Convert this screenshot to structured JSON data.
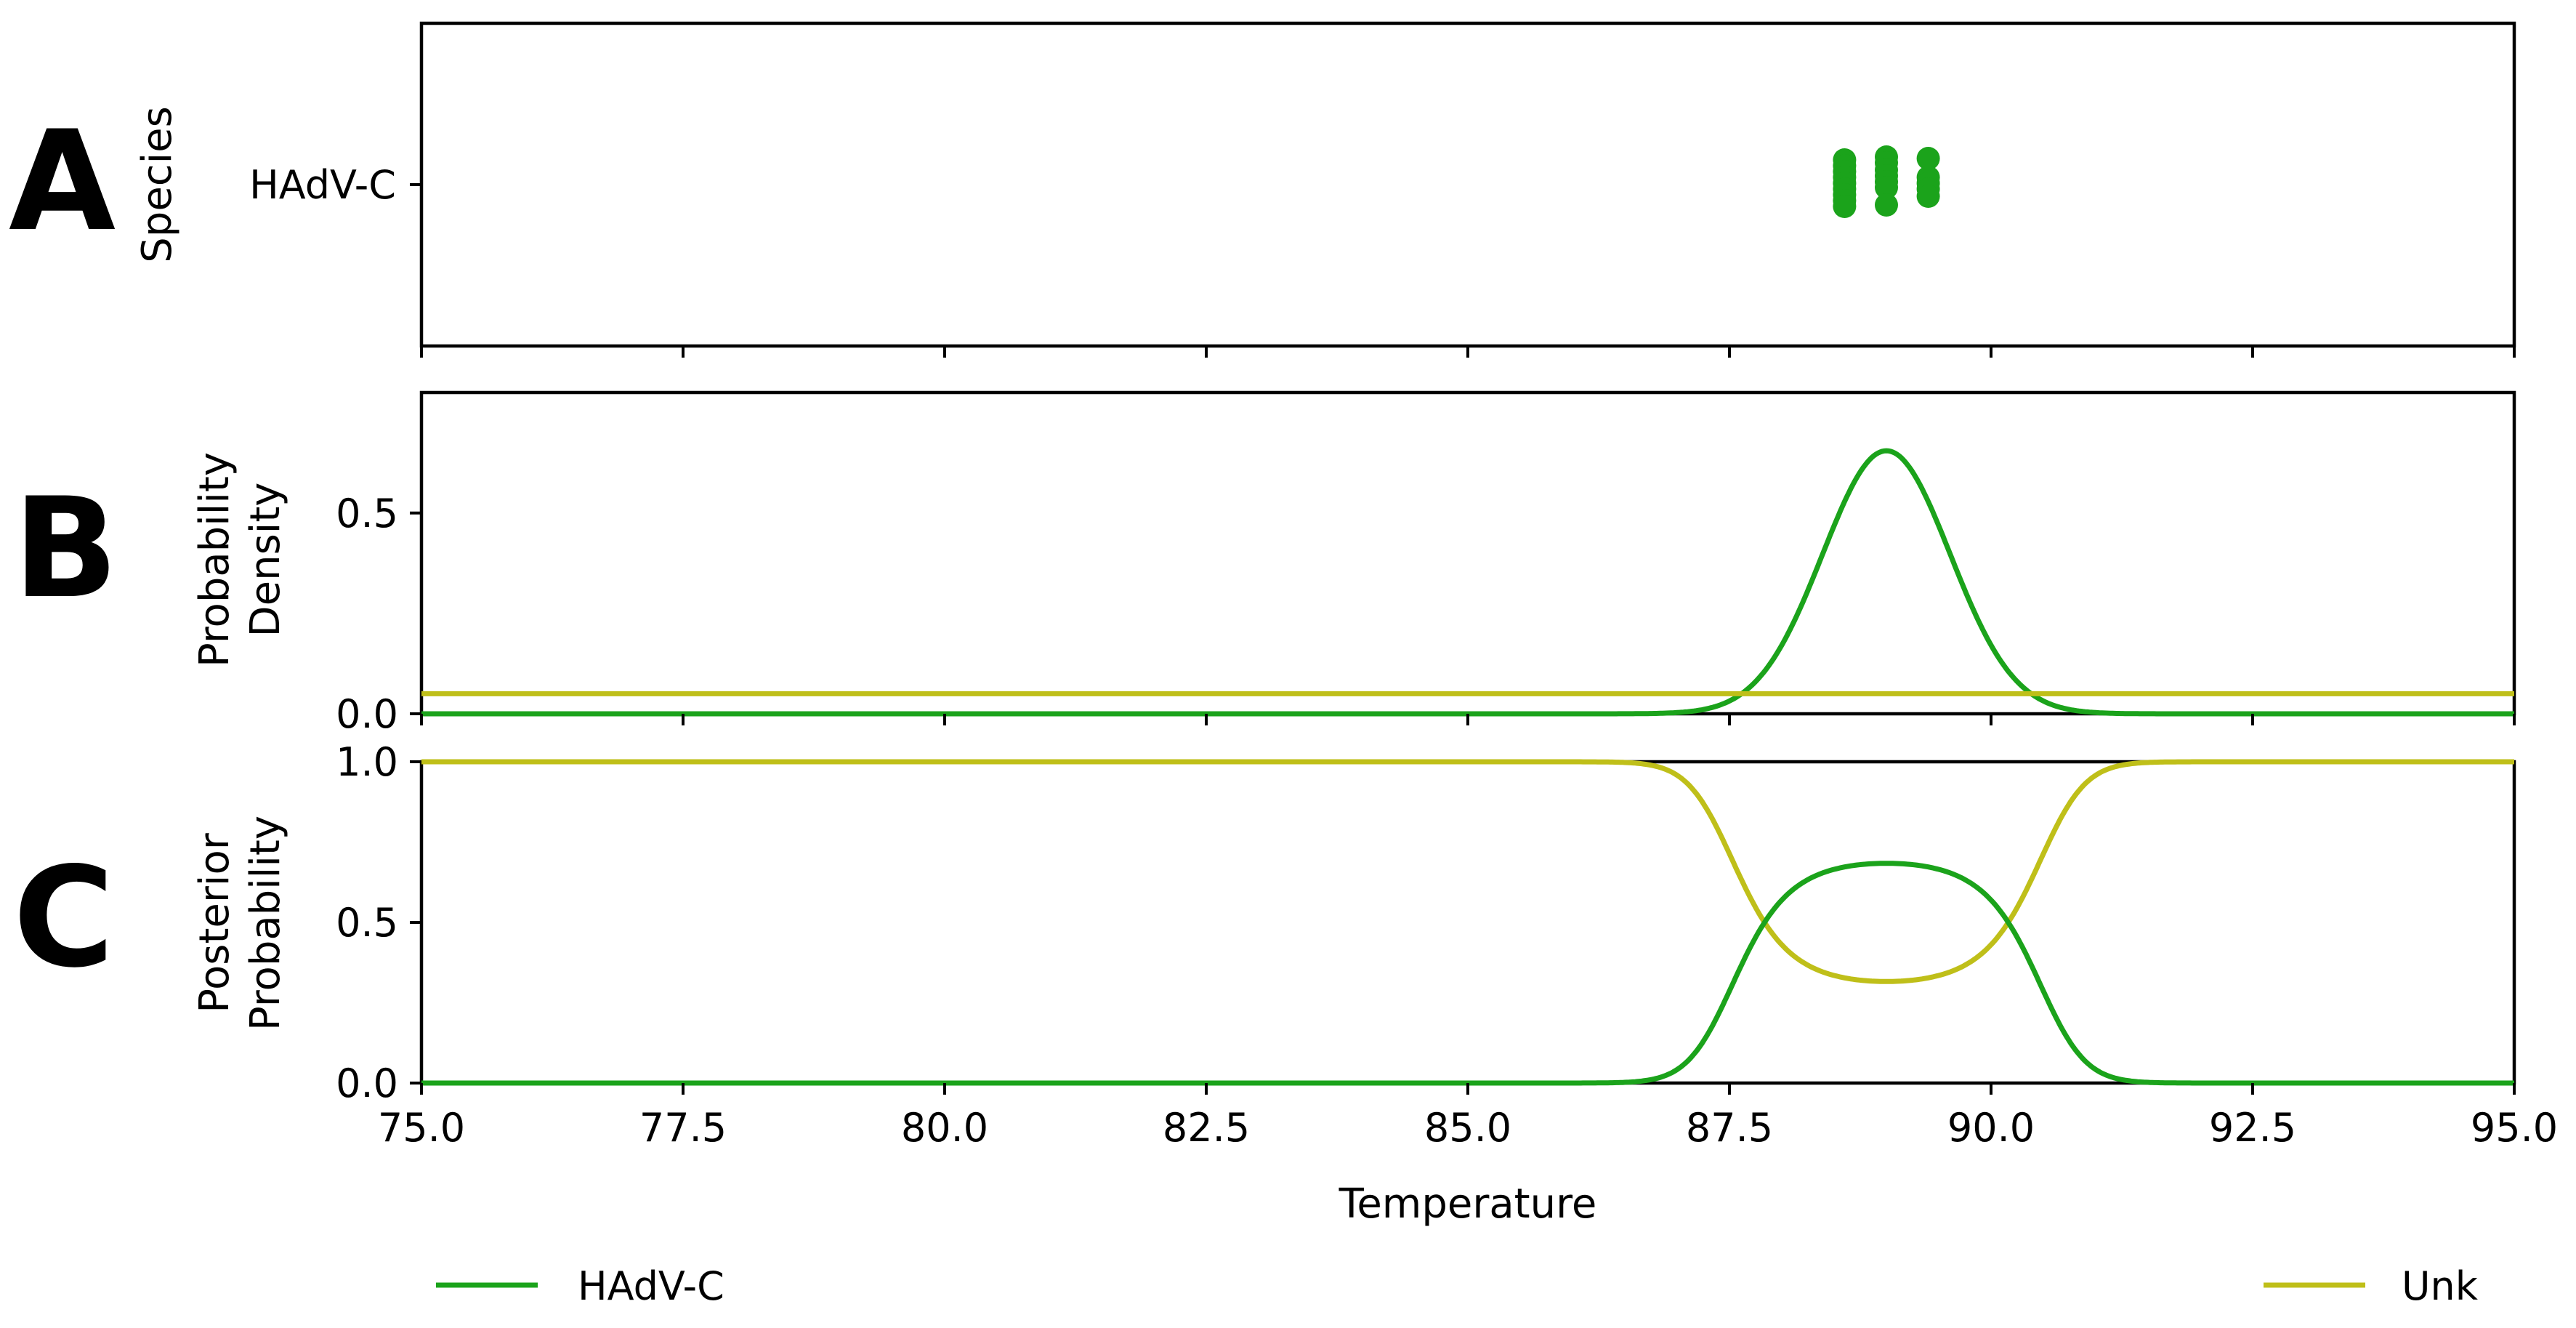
{
  "colors": {
    "hadv_c": "#1ba31b",
    "unk": "#bfbf19"
  },
  "legend": [
    {
      "label": "HAdV-C",
      "color": "#1ba31b"
    },
    {
      "label": "Unk",
      "color": "#bfbf19"
    }
  ],
  "chart_data": [
    {
      "panel": "A",
      "type": "scatter",
      "ylabel": "Species",
      "y_categories": [
        "HAdV-C"
      ],
      "xlim": [
        75,
        95
      ],
      "series": [
        {
          "name": "HAdV-C",
          "points": [
            {
              "x": 88.6,
              "y_offset": 0.17
            },
            {
              "x": 88.6,
              "y_offset": 0.13
            },
            {
              "x": 88.6,
              "y_offset": 0.09
            },
            {
              "x": 88.6,
              "y_offset": 0.05
            },
            {
              "x": 88.6,
              "y_offset": 0.01
            },
            {
              "x": 88.6,
              "y_offset": -0.03
            },
            {
              "x": 88.6,
              "y_offset": -0.07
            },
            {
              "x": 88.6,
              "y_offset": -0.11
            },
            {
              "x": 88.6,
              "y_offset": -0.15
            },
            {
              "x": 89.0,
              "y_offset": 0.19
            },
            {
              "x": 89.0,
              "y_offset": 0.15
            },
            {
              "x": 89.0,
              "y_offset": 0.1
            },
            {
              "x": 89.0,
              "y_offset": 0.06
            },
            {
              "x": 89.0,
              "y_offset": 0.02
            },
            {
              "x": 89.0,
              "y_offset": -0.02
            },
            {
              "x": 89.0,
              "y_offset": -0.14
            },
            {
              "x": 89.4,
              "y_offset": 0.18
            },
            {
              "x": 89.4,
              "y_offset": 0.05
            },
            {
              "x": 89.4,
              "y_offset": 0.01
            },
            {
              "x": 89.4,
              "y_offset": -0.03
            },
            {
              "x": 89.4,
              "y_offset": -0.08
            }
          ]
        }
      ]
    },
    {
      "panel": "B",
      "type": "line",
      "ylabel": [
        "Probability",
        "Density"
      ],
      "xlim": [
        75,
        95
      ],
      "ylim": [
        0,
        0.8
      ],
      "yticks": [
        "0.0",
        "0.5"
      ],
      "series": [
        {
          "name": "HAdV-C",
          "model": "gaussian",
          "mean": 89.0,
          "sd": 0.61,
          "peak": 0.655
        },
        {
          "name": "Unk",
          "model": "constant",
          "value": 0.05
        }
      ]
    },
    {
      "panel": "C",
      "type": "line",
      "ylabel": [
        "Posterior",
        "Probability"
      ],
      "xlabel": "Temperature",
      "xlim": [
        75,
        95
      ],
      "ylim": [
        0,
        1
      ],
      "yticks": [
        "0.0",
        "0.5",
        "1.0"
      ],
      "xticks": [
        "75.0",
        "77.5",
        "80.0",
        "82.5",
        "85.0",
        "87.5",
        "90.0",
        "92.5",
        "95.0"
      ],
      "series": [
        {
          "name": "HAdV-C",
          "model": "posterior",
          "peak": 0.684,
          "center": 89.0
        },
        {
          "name": "Unk",
          "model": "posterior-complement",
          "min": 0.316,
          "center": 89.0
        }
      ]
    }
  ]
}
